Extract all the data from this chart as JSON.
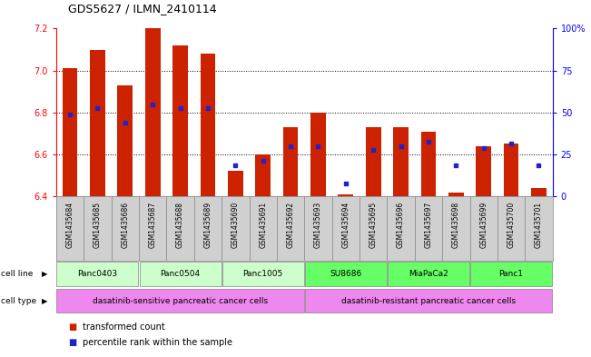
{
  "title": "GDS5627 / ILMN_2410114",
  "samples": [
    "GSM1435684",
    "GSM1435685",
    "GSM1435686",
    "GSM1435687",
    "GSM1435688",
    "GSM1435689",
    "GSM1435690",
    "GSM1435691",
    "GSM1435692",
    "GSM1435693",
    "GSM1435694",
    "GSM1435695",
    "GSM1435696",
    "GSM1435697",
    "GSM1435698",
    "GSM1435699",
    "GSM1435700",
    "GSM1435701"
  ],
  "red_values": [
    7.01,
    7.1,
    6.93,
    7.2,
    7.12,
    7.08,
    6.52,
    6.6,
    6.73,
    6.8,
    6.41,
    6.73,
    6.73,
    6.71,
    6.42,
    6.64,
    6.65,
    6.44
  ],
  "blue_values": [
    6.79,
    6.82,
    6.75,
    6.84,
    6.82,
    6.82,
    6.55,
    6.57,
    6.64,
    6.64,
    6.46,
    6.62,
    6.64,
    6.66,
    6.55,
    6.63,
    6.65,
    6.55
  ],
  "ylim_left": [
    6.4,
    7.2
  ],
  "ylim_right": [
    0,
    100
  ],
  "yticks_left": [
    6.4,
    6.6,
    6.8,
    7.0,
    7.2
  ],
  "yticks_right": [
    0,
    25,
    50,
    75,
    100
  ],
  "ytick_labels_right": [
    "0",
    "25",
    "50",
    "75",
    "100%"
  ],
  "bar_color": "#cc2200",
  "dot_color": "#2222cc",
  "cell_lines": [
    {
      "label": "Panc0403",
      "start": 0,
      "end": 2,
      "sensitive": true
    },
    {
      "label": "Panc0504",
      "start": 3,
      "end": 5,
      "sensitive": true
    },
    {
      "label": "Panc1005",
      "start": 6,
      "end": 8,
      "sensitive": true
    },
    {
      "label": "SU8686",
      "start": 9,
      "end": 11,
      "sensitive": false
    },
    {
      "label": "MiaPaCa2",
      "start": 12,
      "end": 14,
      "sensitive": false
    },
    {
      "label": "Panc1",
      "start": 15,
      "end": 17,
      "sensitive": false
    }
  ],
  "cell_line_color_sensitive": "#ccffcc",
  "cell_line_color_resistant": "#66ff66",
  "cell_type_color": "#ee88ee",
  "legend_items": [
    {
      "color": "#cc2200",
      "label": "transformed count"
    },
    {
      "color": "#2222cc",
      "label": "percentile rank within the sample"
    }
  ],
  "bar_width": 0.55,
  "base_value": 6.4,
  "xtick_bg_color": "#d0d0d0",
  "n_sensitive": 9,
  "n_resistant": 9
}
